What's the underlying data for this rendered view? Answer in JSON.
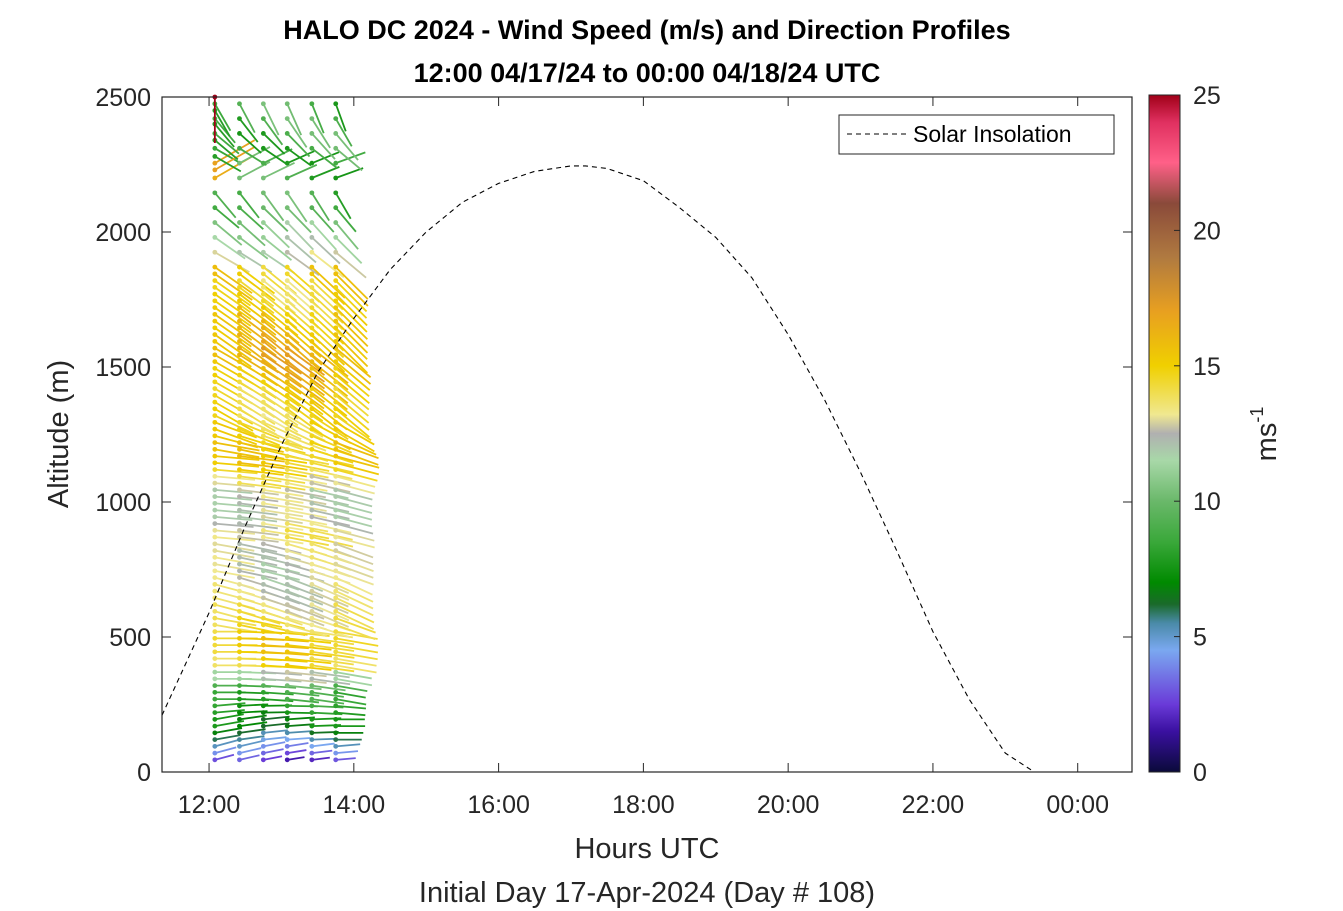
{
  "chart_data": {
    "type": "wind-barb-profile",
    "title_line1": "HALO DC 2024 - Wind Speed (m/s) and Direction Profiles",
    "title_line2": "12:00 04/17/24 to 00:00 04/18/24  UTC",
    "xlabel": "Hours UTC",
    "xlabel_sub": "Initial Day 17-Apr-2024 (Day # 108)",
    "ylabel": "Altitude (m)",
    "xlim": [
      11.35,
      24.75
    ],
    "ylim": [
      0,
      2500
    ],
    "x_ticks": [
      {
        "value": 12,
        "label": "12:00"
      },
      {
        "value": 14,
        "label": "14:00"
      },
      {
        "value": 16,
        "label": "16:00"
      },
      {
        "value": 18,
        "label": "18:00"
      },
      {
        "value": 20,
        "label": "20:00"
      },
      {
        "value": 22,
        "label": "22:00"
      },
      {
        "value": 24,
        "label": "00:00"
      }
    ],
    "y_ticks": [
      {
        "value": 0,
        "label": "0"
      },
      {
        "value": 500,
        "label": "500"
      },
      {
        "value": 1000,
        "label": "1000"
      },
      {
        "value": 1500,
        "label": "1500"
      },
      {
        "value": 2000,
        "label": "2000"
      },
      {
        "value": 2500,
        "label": "2500"
      }
    ],
    "colorbar": {
      "label_base": "ms",
      "label_exp": "-1",
      "range": [
        0,
        25
      ],
      "ticks": [
        {
          "value": 0,
          "label": "0"
        },
        {
          "value": 5,
          "label": "5"
        },
        {
          "value": 10,
          "label": "10"
        },
        {
          "value": 15,
          "label": "15"
        },
        {
          "value": 20,
          "label": "20"
        },
        {
          "value": 25,
          "label": "25"
        }
      ],
      "stops": [
        {
          "v": 0,
          "c": "#0a0a3a"
        },
        {
          "v": 1.5,
          "c": "#3a10a0"
        },
        {
          "v": 2.5,
          "c": "#6a3ad8"
        },
        {
          "v": 4.5,
          "c": "#7aa8f0"
        },
        {
          "v": 5.5,
          "c": "#4a8aa8"
        },
        {
          "v": 6.2,
          "c": "#1a6a2a"
        },
        {
          "v": 7,
          "c": "#008a00"
        },
        {
          "v": 8.5,
          "c": "#3aa83a"
        },
        {
          "v": 10,
          "c": "#6ab86a"
        },
        {
          "v": 11.5,
          "c": "#a8d8a8"
        },
        {
          "v": 12.5,
          "c": "#b0b0b0"
        },
        {
          "v": 13.2,
          "c": "#f0e890"
        },
        {
          "v": 15,
          "c": "#f0d000"
        },
        {
          "v": 17,
          "c": "#e8a020"
        },
        {
          "v": 19,
          "c": "#b07a40"
        },
        {
          "v": 21,
          "c": "#8a4a3a"
        },
        {
          "v": 22.5,
          "c": "#ff6088"
        },
        {
          "v": 24,
          "c": "#e03060"
        },
        {
          "v": 25,
          "c": "#a00018"
        }
      ]
    },
    "legend": {
      "position": "top-right",
      "entries": [
        {
          "name": "Solar Insolation",
          "style": "dashed",
          "color": "#000000"
        }
      ]
    },
    "solar_insolation": {
      "x": [
        11.35,
        12.0,
        12.5,
        13.0,
        13.5,
        14.0,
        14.5,
        15.0,
        15.5,
        16.0,
        16.5,
        17.0,
        17.2,
        17.5,
        18.0,
        18.5,
        19.0,
        19.5,
        20.0,
        20.5,
        21.0,
        21.5,
        22.0,
        22.5,
        23.0,
        23.4,
        23.6,
        24.0,
        24.4,
        24.75
      ],
      "y": [
        210,
        590,
        910,
        1210,
        1480,
        1680,
        1860,
        2000,
        2110,
        2180,
        2225,
        2245,
        2245,
        2235,
        2190,
        2090,
        1980,
        1830,
        1620,
        1380,
        1110,
        820,
        520,
        270,
        70,
        0,
        0,
        0,
        0,
        0
      ]
    },
    "profile_times": [
      12.08,
      12.42,
      12.75,
      13.08,
      13.42,
      13.75
    ],
    "altitude_step": 25,
    "altitude_start": 45,
    "altitude_end": 1850,
    "profiles": [
      {
        "time": 12.08,
        "levels": [
          {
            "z": 45,
            "speed": 2.5,
            "dir": 255
          },
          {
            "z": 70,
            "speed": 3.5,
            "dir": 255
          },
          {
            "z": 95,
            "speed": 4.5,
            "dir": 255
          },
          {
            "z": 120,
            "speed": 5.2,
            "dir": 260
          },
          {
            "z": 150,
            "speed": 6.0,
            "dir": 260
          },
          {
            "z": 180,
            "speed": 7.0,
            "dir": 260
          },
          {
            "z": 210,
            "speed": 7.5,
            "dir": 265
          },
          {
            "z": 240,
            "speed": 8.0,
            "dir": 265
          },
          {
            "z": 280,
            "speed": 8.5,
            "dir": 270
          },
          {
            "z": 320,
            "speed": 9.5,
            "dir": 270
          },
          {
            "z": 360,
            "speed": 12.0,
            "dir": 270
          },
          {
            "z": 400,
            "speed": 14.5,
            "dir": 270
          },
          {
            "z": 440,
            "speed": 15.0,
            "dir": 270
          },
          {
            "z": 480,
            "speed": 15.0,
            "dir": 270
          },
          {
            "z": 520,
            "speed": 14.5,
            "dir": 270
          },
          {
            "z": 560,
            "speed": 14.0,
            "dir": 280
          },
          {
            "z": 600,
            "speed": 13.5,
            "dir": 285
          },
          {
            "z": 640,
            "speed": 13.0,
            "dir": 285
          },
          {
            "z": 680,
            "speed": 12.8,
            "dir": 285
          },
          {
            "z": 720,
            "speed": 12.5,
            "dir": 285
          },
          {
            "z": 760,
            "speed": 12.5,
            "dir": 280
          },
          {
            "z": 800,
            "speed": 12.8,
            "dir": 280
          },
          {
            "z": 840,
            "speed": 13.0,
            "dir": 280
          },
          {
            "z": 880,
            "speed": 13.5,
            "dir": 275
          },
          {
            "z": 920,
            "speed": 13.0,
            "dir": 275
          },
          {
            "z": 960,
            "speed": 12.5,
            "dir": 275
          },
          {
            "z": 1000,
            "speed": 12.5,
            "dir": 275
          },
          {
            "z": 1040,
            "speed": 12.5,
            "dir": 275
          },
          {
            "z": 1080,
            "speed": 13.5,
            "dir": 275
          },
          {
            "z": 1120,
            "speed": 14.5,
            "dir": 275
          },
          {
            "z": 1160,
            "speed": 15.0,
            "dir": 275
          },
          {
            "z": 1200,
            "speed": 15.0,
            "dir": 280
          },
          {
            "z": 1240,
            "speed": 14.5,
            "dir": 285
          },
          {
            "z": 1280,
            "speed": 14.5,
            "dir": 290
          },
          {
            "z": 1320,
            "speed": 14.0,
            "dir": 295
          },
          {
            "z": 1360,
            "speed": 14.5,
            "dir": 300
          },
          {
            "z": 1400,
            "speed": 14.5,
            "dir": 300
          },
          {
            "z": 1440,
            "speed": 15.0,
            "dir": 300
          },
          {
            "z": 1480,
            "speed": 15.5,
            "dir": 300
          },
          {
            "z": 1520,
            "speed": 16.0,
            "dir": 300
          },
          {
            "z": 1560,
            "speed": 16.5,
            "dir": 300
          },
          {
            "z": 1600,
            "speed": 16.0,
            "dir": 305
          },
          {
            "z": 1640,
            "speed": 15.5,
            "dir": 305
          },
          {
            "z": 1680,
            "speed": 15.5,
            "dir": 305
          },
          {
            "z": 1720,
            "speed": 15.0,
            "dir": 305
          },
          {
            "z": 1760,
            "speed": 14.5,
            "dir": 305
          },
          {
            "z": 1800,
            "speed": 14.0,
            "dir": 305
          },
          {
            "z": 1850,
            "speed": 15.0,
            "dir": 305
          },
          {
            "z": 1900,
            "speed": 12.5,
            "dir": 300
          },
          {
            "z": 1950,
            "speed": 13.5,
            "dir": 300
          },
          {
            "z": 2000,
            "speed": 11.5,
            "dir": 305
          },
          {
            "z": 2050,
            "speed": 11.0,
            "dir": 310
          },
          {
            "z": 2100,
            "speed": 9.5,
            "dir": 310
          },
          {
            "z": 2150,
            "speed": 10.0,
            "dir": 320
          },
          {
            "z": 2230,
            "speed": 17.0,
            "dir": 240
          },
          {
            "z": 2280,
            "speed": 8.0,
            "dir": 300
          },
          {
            "z": 2340,
            "speed": 8.0,
            "dir": 310
          },
          {
            "z": 2400,
            "speed": 8.0,
            "dir": 320
          },
          {
            "z": 2450,
            "speed": 8.0,
            "dir": 330
          },
          {
            "z": 2500,
            "speed": 25.0,
            "dir": 0
          }
        ]
      }
    ]
  }
}
